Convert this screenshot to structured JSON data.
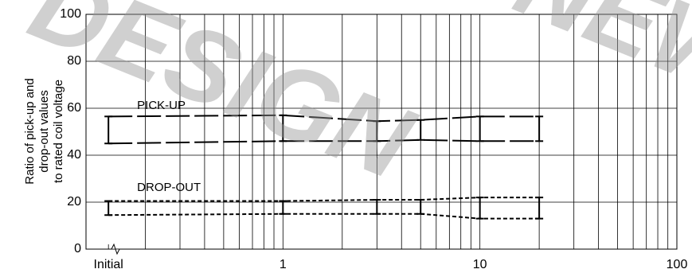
{
  "chart_data": {
    "type": "line",
    "log_x": true,
    "grid": true,
    "xlim": [
      0.1,
      100
    ],
    "ylim": [
      0,
      100
    ],
    "xticks": [
      {
        "value": 0.13,
        "label": "Initial"
      },
      1,
      10,
      100
    ],
    "yticks": [
      0,
      20,
      40,
      60,
      80,
      100
    ],
    "y_label": [
      "Ratio of pick-up and",
      "drop-out values",
      "to rated coil voltage"
    ],
    "x": [
      0.13,
      1,
      3,
      5,
      10,
      20
    ],
    "groups": [
      {
        "label": "PICK-UP",
        "series": [
          {
            "values": [
              56.5,
              57,
              54.5,
              55,
              56.5,
              56.5
            ],
            "color": "#000000"
          },
          {
            "values": [
              45,
              46,
              46,
              46.5,
              46,
              46
            ],
            "color": "#000000"
          }
        ]
      },
      {
        "label": "DROP-OUT",
        "series": [
          {
            "values": [
              20.5,
              20.5,
              21,
              21,
              22,
              22
            ],
            "color": "#000000"
          },
          {
            "values": [
              14.5,
              15,
              15,
              15,
              13,
              13
            ],
            "color": "#000000"
          }
        ]
      }
    ]
  },
  "watermark": [
    "DESIGN",
    "NEW"
  ]
}
